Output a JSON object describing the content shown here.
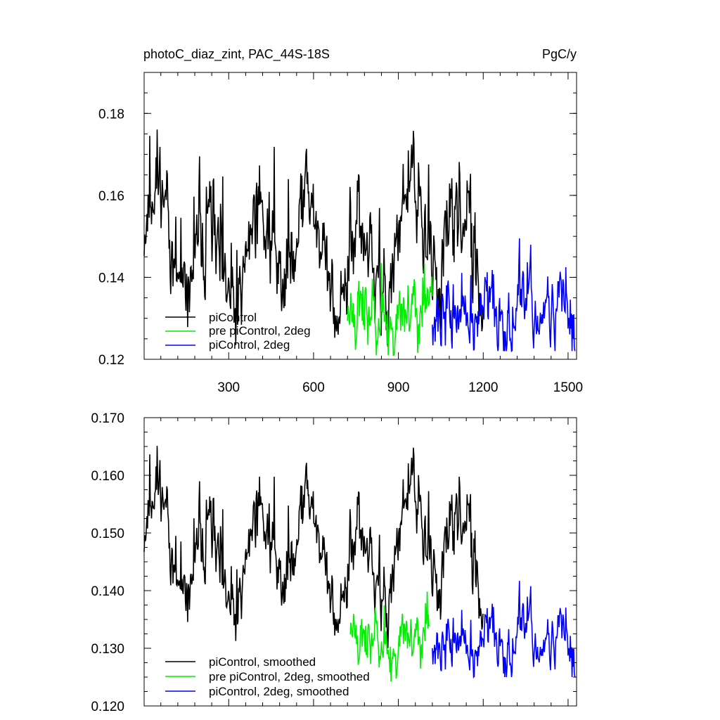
{
  "chart_data": [
    {
      "type": "line",
      "title": "photoC_diaz_zint, PAC_44S-18S",
      "units": "PgC/y",
      "xlim": [
        1,
        1530
      ],
      "ylim": [
        0.12,
        0.19
      ],
      "xticks": [
        300,
        600,
        900,
        1200,
        1500
      ],
      "xtick_labels": [
        "300",
        "600",
        "900",
        "1200",
        "1500"
      ],
      "yticks": [
        0.12,
        0.14,
        0.16,
        0.18
      ],
      "ytick_labels": [
        "0.12",
        "0.14",
        "0.16",
        "0.18"
      ],
      "legend_position": "bottom-left",
      "series": [
        {
          "name": "piControl",
          "color": "#000000",
          "x_start": 1,
          "x_end": 1200,
          "mean": 0.146,
          "amplitude": 0.011,
          "period": 180,
          "noise": 0.0085,
          "min": 0.123,
          "max": 0.181,
          "seed": 11
        },
        {
          "name": "pre piControl, 2deg",
          "color": "#00ee00",
          "x_start": 720,
          "x_end": 1020,
          "mean": 0.131,
          "amplitude": 0.002,
          "period": 90,
          "noise": 0.0065,
          "min": 0.121,
          "max": 0.161,
          "seed": 23
        },
        {
          "name": "piControl, 2deg",
          "color": "#0000ff",
          "x_start": 1020,
          "x_end": 1525,
          "mean": 0.131,
          "amplitude": 0.002,
          "period": 120,
          "noise": 0.006,
          "min": 0.122,
          "max": 0.17,
          "seed": 37
        }
      ]
    },
    {
      "type": "line",
      "title": "",
      "xlim": [
        1,
        1530
      ],
      "ylim": [
        0.12,
        0.17
      ],
      "xticks": [
        300,
        600,
        900,
        1200,
        1500
      ],
      "yticks": [
        0.12,
        0.13,
        0.14,
        0.15,
        0.16,
        0.17
      ],
      "ytick_labels": [
        "0.120",
        "0.130",
        "0.140",
        "0.150",
        "0.160",
        "0.170"
      ],
      "legend_position": "bottom-left",
      "series": [
        {
          "name": "piControl, smoothed",
          "color": "#000000",
          "x_start": 1,
          "x_end": 1200,
          "mean": 0.146,
          "amplitude": 0.008,
          "period": 180,
          "noise": 0.0045,
          "min": 0.129,
          "max": 0.169,
          "seed": 11
        },
        {
          "name": "pre piControl, 2deg, smoothed",
          "color": "#00ee00",
          "x_start": 730,
          "x_end": 1010,
          "mean": 0.1315,
          "amplitude": 0.002,
          "period": 90,
          "noise": 0.0035,
          "min": 0.124,
          "max": 0.143,
          "seed": 23
        },
        {
          "name": "piControl, 2deg, smoothed",
          "color": "#0000ff",
          "x_start": 1020,
          "x_end": 1525,
          "mean": 0.131,
          "amplitude": 0.002,
          "period": 120,
          "noise": 0.0032,
          "min": 0.125,
          "max": 0.1535,
          "seed": 37
        }
      ]
    }
  ]
}
